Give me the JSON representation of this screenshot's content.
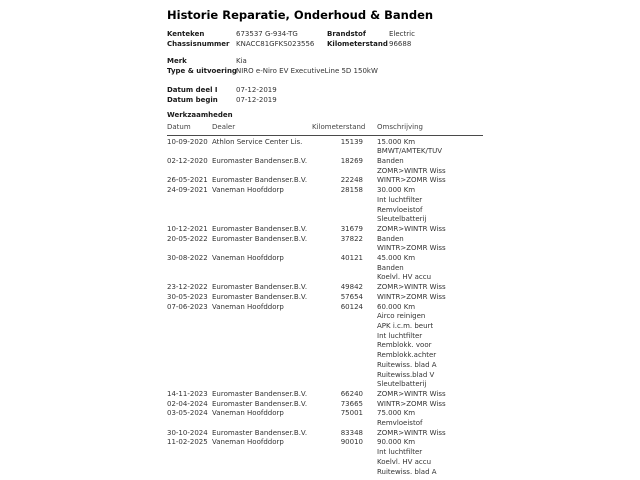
{
  "page": {
    "title": "Historie Reparatie, Onderhoud & Banden"
  },
  "vehicle_info": {
    "block1": {
      "left": [
        {
          "label": "Kenteken",
          "value": "673537 G-934-TG"
        },
        {
          "label": "Chassisnummer",
          "value": "KNACC81GFKS023556"
        }
      ],
      "right": [
        {
          "label": "Brandstof",
          "value": "Electric"
        },
        {
          "label": "Kilometerstand",
          "value": "96688"
        }
      ]
    },
    "block2": [
      {
        "label": "Merk",
        "value": "Kia"
      },
      {
        "label": "Type & uitvoering",
        "value": "NIRO e-Niro EV ExecutiveLine 5D 150kW"
      }
    ],
    "block3": [
      {
        "label": "Datum deel I",
        "value": "07-12-2019"
      },
      {
        "label": "Datum begin",
        "value": "07-12-2019"
      }
    ]
  },
  "werkzaamheden": {
    "section_title": "Werkzaamheden",
    "columns": {
      "datum": "Datum",
      "dealer": "Dealer",
      "kilometerstand": "Kilometerstand",
      "omschrijving": "Omschrijving"
    },
    "rows": [
      {
        "datum": "10-09-2020",
        "dealer": "Athlon Service Center Lis.",
        "kilometerstand": "15139",
        "omschrijving": [
          "15.000 Km",
          "BMWT/AMTEK/TUV"
        ]
      },
      {
        "datum": "02-12-2020",
        "dealer": "Euromaster Bandenser.B.V.",
        "kilometerstand": "18269",
        "omschrijving": [
          "Banden",
          "ZOMR>WINTR Wiss"
        ]
      },
      {
        "datum": "26-05-2021",
        "dealer": "Euromaster Bandenser.B.V.",
        "kilometerstand": "22248",
        "omschrijving": [
          "WINTR>ZOMR Wiss"
        ]
      },
      {
        "datum": "24-09-2021",
        "dealer": "Vaneman Hoofddorp",
        "kilometerstand": "28158",
        "omschrijving": [
          "30.000 Km",
          "Int luchtfilter",
          "Remvloeistof",
          "Sleutelbatterij"
        ]
      },
      {
        "datum": "10-12-2021",
        "dealer": "Euromaster Bandenser.B.V.",
        "kilometerstand": "31679",
        "omschrijving": [
          "ZOMR>WINTR Wiss"
        ]
      },
      {
        "datum": "20-05-2022",
        "dealer": "Euromaster Bandenser.B.V.",
        "kilometerstand": "37822",
        "omschrijving": [
          "Banden",
          "WINTR>ZOMR Wiss"
        ]
      },
      {
        "datum": "30-08-2022",
        "dealer": "Vaneman Hoofddorp",
        "kilometerstand": "40121",
        "omschrijving": [
          "45.000 Km",
          "Banden",
          "Koelvl. HV accu"
        ]
      },
      {
        "datum": "23-12-2022",
        "dealer": "Euromaster Bandenser.B.V.",
        "kilometerstand": "49842",
        "omschrijving": [
          "ZOMR>WINTR Wiss"
        ]
      },
      {
        "datum": "30-05-2023",
        "dealer": "Euromaster Bandenser.B.V.",
        "kilometerstand": "57654",
        "omschrijving": [
          "WINTR>ZOMR Wiss"
        ]
      },
      {
        "datum": "07-06-2023",
        "dealer": "Vaneman Hoofddorp",
        "kilometerstand": "60124",
        "omschrijving": [
          "60.000 Km",
          "Airco reinigen",
          "APK i.c.m. beurt",
          "Int luchtfilter",
          "Remblokk. voor",
          "Remblokk.achter",
          "Ruitewiss. blad A",
          "Ruitewiss.blad V",
          "Sleutelbatterij"
        ]
      },
      {
        "datum": "14-11-2023",
        "dealer": "Euromaster Bandenser.B.V.",
        "kilometerstand": "66240",
        "omschrijving": [
          "ZOMR>WINTR Wiss"
        ]
      },
      {
        "datum": "02-04-2024",
        "dealer": "Euromaster Bandenser.B.V.",
        "kilometerstand": "73665",
        "omschrijving": [
          "WINTR>ZOMR Wiss"
        ]
      },
      {
        "datum": "03-05-2024",
        "dealer": "Vaneman Hoofddorp",
        "kilometerstand": "75001",
        "omschrijving": [
          "75.000 Km",
          "Remvloeistof"
        ]
      },
      {
        "datum": "30-10-2024",
        "dealer": "Euromaster Bandenser.B.V.",
        "kilometerstand": "83348",
        "omschrijving": [
          "ZOMR>WINTR Wiss"
        ]
      },
      {
        "datum": "11-02-2025",
        "dealer": "Vaneman Hoofddorp",
        "kilometerstand": "90010",
        "omschrijving": [
          "90.000 Km",
          "Int luchtfilter",
          "Koelvl. HV accu",
          "Ruitewiss. blad A"
        ]
      }
    ]
  },
  "colors": {
    "background": "#ffffff",
    "text": "#333333",
    "heading_text": "#000000",
    "rule_line": "#4a4a4a"
  }
}
